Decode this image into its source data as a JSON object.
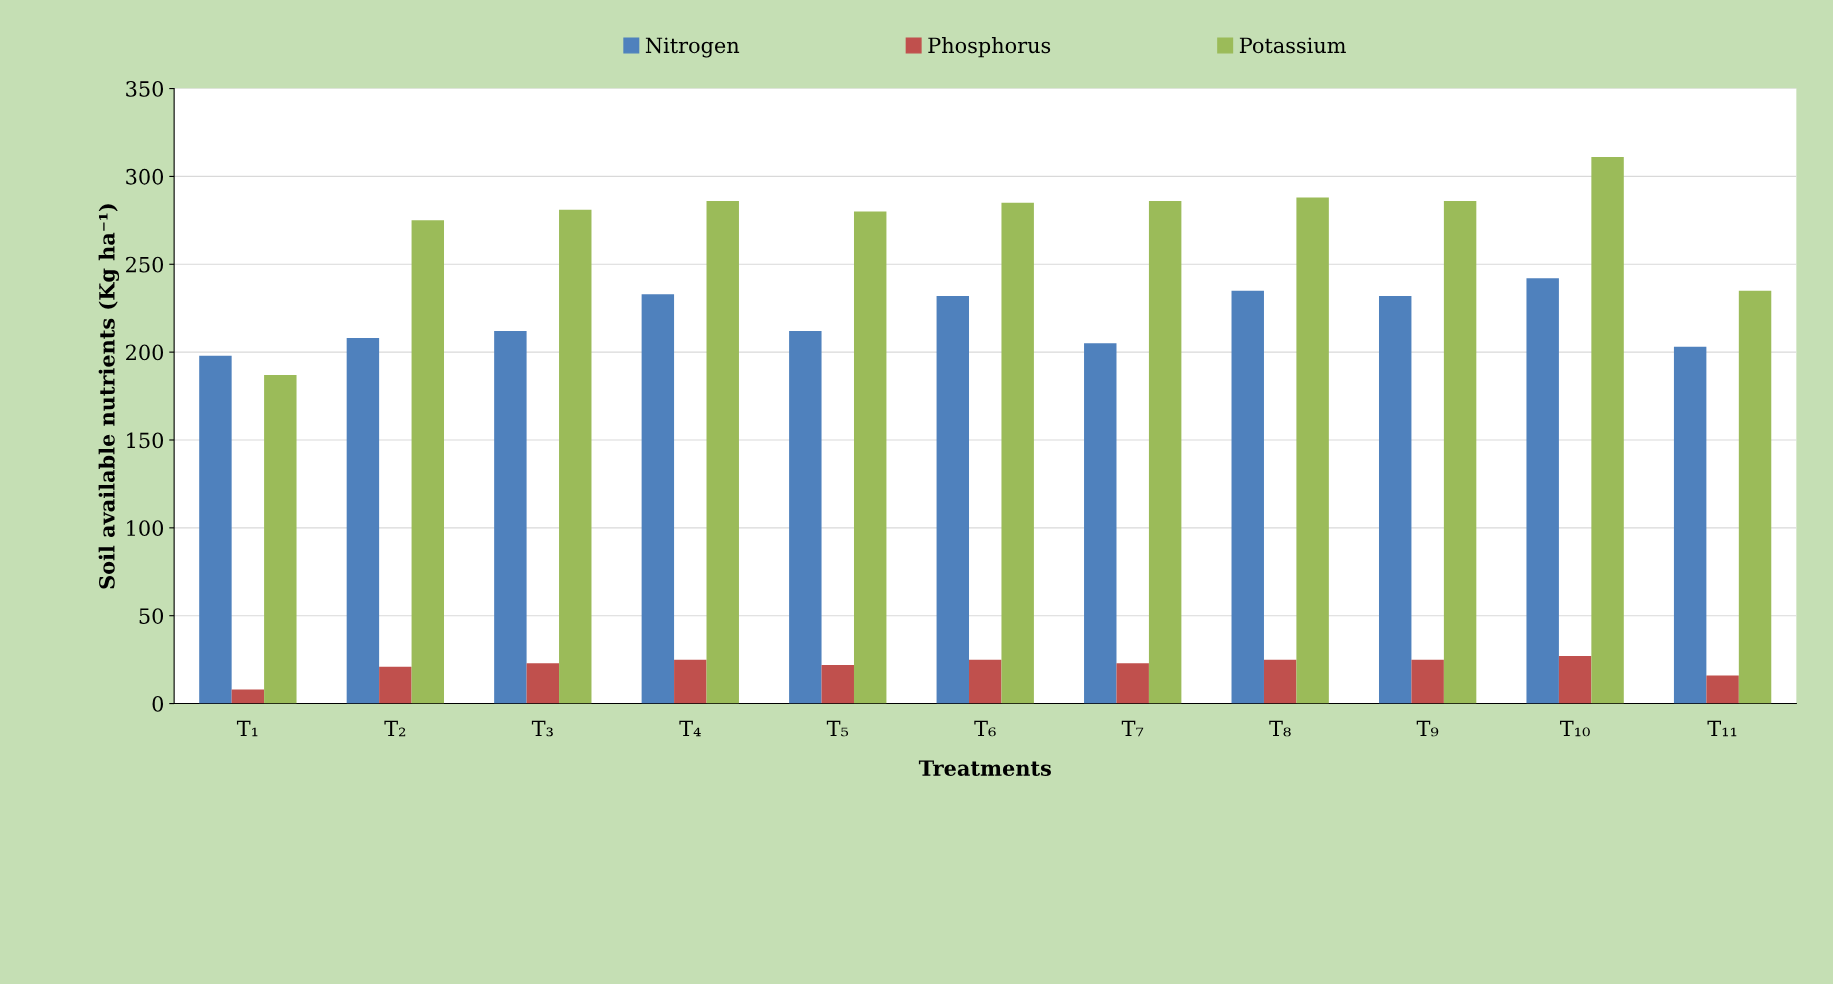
{
  "chart_data": {
    "type": "bar",
    "xlabel": "Treatments",
    "ylabel": "Soil available nutrients (Kg ha⁻¹)",
    "categories": [
      "T₁",
      "T₂",
      "T₃",
      "T₄",
      "T₅",
      "T₆",
      "T₇",
      "T₈",
      "T₉",
      "T₁₀",
      "T₁₁"
    ],
    "series": [
      {
        "name": "Nitrogen",
        "color": "#4f81bd",
        "values": [
          198,
          208,
          212,
          233,
          212,
          232,
          205,
          235,
          232,
          242,
          203
        ]
      },
      {
        "name": "Phosphorus",
        "color": "#c0504d",
        "values": [
          8,
          21,
          23,
          25,
          22,
          25,
          23,
          25,
          25,
          27,
          16
        ]
      },
      {
        "name": "Potassium",
        "color": "#9bbb59",
        "values": [
          187,
          275,
          281,
          286,
          280,
          285,
          286,
          288,
          286,
          311,
          235
        ]
      }
    ],
    "ylim": [
      0,
      350
    ],
    "yticks": [
      0,
      50,
      100,
      150,
      200,
      250,
      300,
      350
    ],
    "grid": "y",
    "legend": "top"
  }
}
